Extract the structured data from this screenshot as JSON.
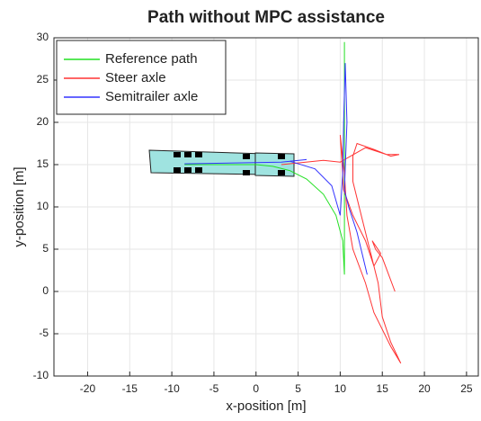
{
  "chart_data": {
    "type": "line",
    "title": "Path without MPC assistance",
    "x_label": "x-position [m]",
    "y_label": "y-position [m]",
    "xlim": [
      -24,
      26.4
    ],
    "ylim": [
      -10,
      30
    ],
    "xticks": [
      -20,
      -15,
      -10,
      -5,
      0,
      5,
      10,
      15,
      20,
      25
    ],
    "yticks": [
      -10,
      -5,
      0,
      5,
      10,
      15,
      20,
      25,
      30
    ],
    "grid": true,
    "legend_location": "northwest",
    "series": [
      {
        "name": "Reference path",
        "color": "#22e022",
        "x": [
          -8.5,
          0,
          2,
          4,
          6,
          8,
          9.5,
          10.3,
          10.5,
          10.5
        ],
        "values": [
          15,
          15,
          14.8,
          14.3,
          13.3,
          11.5,
          9,
          6,
          2,
          29.5
        ]
      },
      {
        "name": "Steer axle",
        "color": "#ff3333",
        "x": [
          3,
          5,
          8,
          10,
          13,
          15.5,
          17,
          16,
          14,
          12,
          11.5,
          11.5,
          12.5,
          13.5,
          14.5,
          15,
          16,
          17.2,
          16,
          14,
          13,
          11.5,
          10.8,
          10.5,
          10,
          10.4,
          11.5,
          13,
          14,
          14.8,
          13.8,
          14.2,
          15,
          16.5
        ],
        "values": [
          15,
          15.2,
          15.5,
          15.3,
          17,
          16.2,
          16.2,
          16,
          16.8,
          17.5,
          16,
          13,
          9,
          5,
          1,
          -3,
          -6,
          -8.5,
          -6.5,
          -2.5,
          1,
          5,
          9,
          14,
          18.5,
          12,
          9,
          6,
          3,
          4.5,
          6,
          5,
          4,
          0
        ]
      },
      {
        "name": "Semitrailer axle",
        "color": "#3333ff",
        "x": [
          -8.5,
          3,
          6,
          4,
          7,
          9,
          10,
          10.3,
          10.4,
          10.6,
          10.8,
          10.5,
          11,
          12,
          13.2
        ],
        "values": [
          15.1,
          15.3,
          15.6,
          15.4,
          14.5,
          12.5,
          9,
          14,
          20,
          27,
          20,
          12,
          10,
          7,
          2
        ]
      }
    ]
  }
}
